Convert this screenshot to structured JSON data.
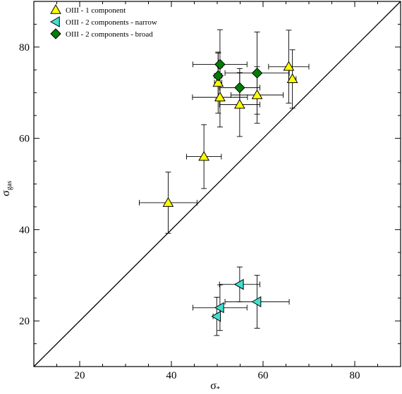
{
  "chart_data": {
    "type": "scatter",
    "xlabel": "σ*",
    "ylabel": "σgas",
    "xlabel_main": "σ",
    "xlabel_sub": "*",
    "ylabel_main": "σ",
    "ylabel_sub": "gas",
    "xlim": [
      10,
      90
    ],
    "ylim": [
      10,
      90
    ],
    "x_ticks": [
      20,
      40,
      60,
      80
    ],
    "y_ticks": [
      20,
      40,
      60,
      80
    ],
    "x_tick_labels": [
      "20",
      "40",
      "60",
      "80"
    ],
    "y_tick_labels": [
      "20",
      "40",
      "60",
      "80"
    ],
    "grid": false,
    "legend_position": "top-left",
    "reference_line": "one-to-one (y = x)",
    "series": [
      {
        "name": "OIII - 1 component",
        "marker": "triangle-up",
        "color": "#ffff00",
        "points": [
          {
            "x": 39.3,
            "y": 45.9,
            "xerr": 6.3,
            "yerr": 6.7
          },
          {
            "x": 47.1,
            "y": 56.0,
            "xerr": 3.8,
            "yerr": 7.0
          },
          {
            "x": 50.2,
            "y": 72.2,
            "xerr": 0.8,
            "yerr": 6.7
          },
          {
            "x": 50.6,
            "y": 69.0,
            "xerr": 6.0,
            "yerr": 6.5
          },
          {
            "x": 54.9,
            "y": 67.4,
            "xerr": 4.4,
            "yerr": 7.0
          },
          {
            "x": 58.7,
            "y": 69.5,
            "xerr": 5.7,
            "yerr": 6.2
          },
          {
            "x": 65.6,
            "y": 75.7,
            "xerr": 4.4,
            "yerr": 8.0
          },
          {
            "x": 66.4,
            "y": 73.0,
            "xerr": 0.8,
            "yerr": 6.4
          }
        ]
      },
      {
        "name": "OIII - 2 components - narrow",
        "marker": "triangle-left",
        "color": "#40e0d0",
        "points": [
          {
            "x": 49.9,
            "y": 21.0,
            "xerr": 0.8,
            "yerr": 4.2
          },
          {
            "x": 50.6,
            "y": 22.9,
            "xerr": 5.9,
            "yerr": 5.0
          },
          {
            "x": 54.9,
            "y": 28.0,
            "xerr": 4.4,
            "yerr": 3.8
          },
          {
            "x": 58.7,
            "y": 24.2,
            "xerr": 7.0,
            "yerr": 5.8
          }
        ]
      },
      {
        "name": "OIII - 2 components - broad",
        "marker": "diamond",
        "color": "#008000",
        "points": [
          {
            "x": 50.2,
            "y": 73.7,
            "xerr": 0.8,
            "yerr": 5.0
          },
          {
            "x": 50.6,
            "y": 76.2,
            "xerr": 5.9,
            "yerr": 7.6
          },
          {
            "x": 54.9,
            "y": 71.1,
            "xerr": 4.4,
            "yerr": 4.2
          },
          {
            "x": 58.7,
            "y": 74.3,
            "xerr": 7.0,
            "yerr": 9.0
          }
        ]
      }
    ]
  }
}
